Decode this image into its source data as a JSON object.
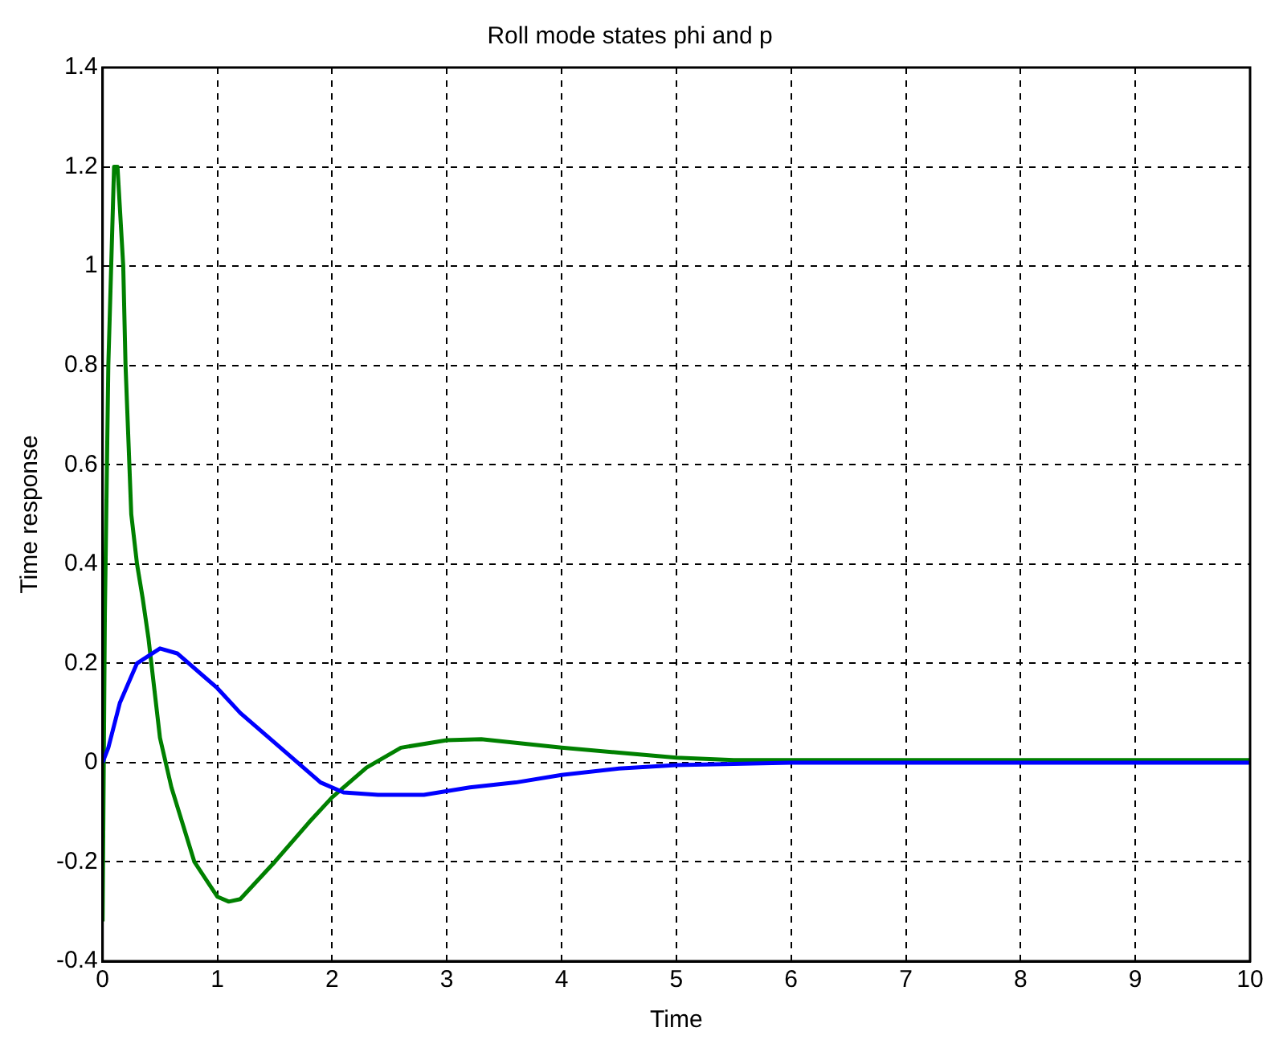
{
  "chart_data": {
    "type": "line",
    "title": "Roll mode states phi and p",
    "xlabel": "Time",
    "ylabel": "Time response",
    "xlim": [
      0,
      10
    ],
    "ylim": [
      -0.4,
      1.4
    ],
    "xticks": [
      0,
      1,
      2,
      3,
      4,
      5,
      6,
      7,
      8,
      9,
      10
    ],
    "yticks": [
      -0.4,
      -0.2,
      0,
      0.2,
      0.4,
      0.6,
      0.8,
      1,
      1.2,
      1.4
    ],
    "grid": true,
    "legend": false,
    "line_style": "solid",
    "marker": "none",
    "series": [
      {
        "color": "#0000ff",
        "x": [
          0,
          0.05,
          0.15,
          0.3,
          0.5,
          0.65,
          1,
          1.2,
          1.5,
          1.7,
          1.9,
          2.1,
          2.4,
          2.8,
          3.2,
          3.6,
          4,
          4.5,
          5,
          6,
          10
        ],
        "values": [
          0,
          0.03,
          0.12,
          0.2,
          0.23,
          0.22,
          0.15,
          0.1,
          0.04,
          0,
          -0.04,
          -0.06,
          -0.065,
          -0.065,
          -0.05,
          -0.04,
          -0.025,
          -0.012,
          -0.005,
          0,
          0
        ]
      },
      {
        "color": "#008000",
        "x": [
          0,
          0.02,
          0.05,
          0.1,
          0.13,
          0.18,
          0.2,
          0.25,
          0.3,
          0.35,
          0.4,
          0.5,
          0.6,
          0.8,
          1,
          1.1,
          1.2,
          1.5,
          1.8,
          2,
          2.3,
          2.6,
          3,
          3.3,
          3.6,
          4,
          4.5,
          5,
          5.5,
          6,
          10
        ],
        "values": [
          -0.32,
          0.3,
          0.8,
          1.2,
          1.2,
          1,
          0.8,
          0.5,
          0.4,
          0.33,
          0.25,
          0.05,
          -0.05,
          -0.2,
          -0.27,
          -0.28,
          -0.275,
          -0.2,
          -0.12,
          -0.07,
          -0.01,
          0.03,
          0.045,
          0.047,
          0.04,
          0.03,
          0.02,
          0.01,
          0.005,
          0.005,
          0.005
        ]
      }
    ]
  }
}
